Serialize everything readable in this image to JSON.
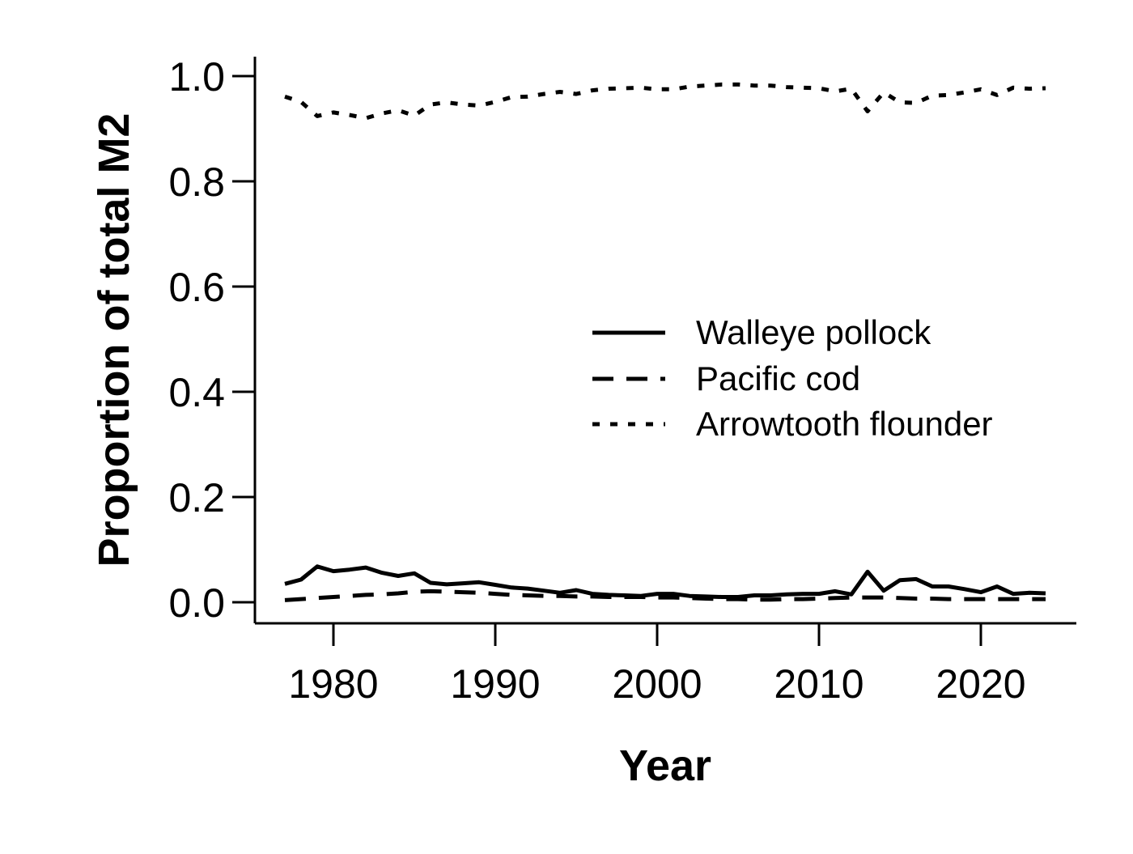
{
  "chart_data": {
    "type": "line",
    "title": "",
    "xlabel": "Year",
    "ylabel": "Proportion of total M2",
    "xlim": [
      1975.5,
      2026
    ],
    "ylim": [
      -0.04,
      1.04
    ],
    "xticks": [
      1980,
      1990,
      2000,
      2010,
      2020
    ],
    "xtick_labels": [
      "1980",
      "1990",
      "2000",
      "2010",
      "2020"
    ],
    "yticks": [
      0.0,
      0.2,
      0.4,
      0.6,
      0.8,
      1.0
    ],
    "ytick_labels": [
      "0.0",
      "0.2",
      "0.4",
      "0.6",
      "0.8",
      "1.0"
    ],
    "grid": false,
    "legend_position": "center-right",
    "x": [
      1977,
      1978,
      1979,
      1980,
      1981,
      1982,
      1983,
      1984,
      1985,
      1986,
      1987,
      1988,
      1989,
      1990,
      1991,
      1992,
      1993,
      1994,
      1995,
      1996,
      1997,
      1998,
      1999,
      2000,
      2001,
      2002,
      2003,
      2004,
      2005,
      2006,
      2007,
      2008,
      2009,
      2010,
      2011,
      2012,
      2013,
      2014,
      2015,
      2016,
      2017,
      2018,
      2019,
      2020,
      2021,
      2022,
      2023,
      2024
    ],
    "series": [
      {
        "name": "Walleye pollock",
        "style": "solid",
        "color": "#000000",
        "values": [
          0.035,
          0.043,
          0.068,
          0.059,
          0.062,
          0.066,
          0.056,
          0.05,
          0.055,
          0.037,
          0.034,
          0.036,
          0.038,
          0.033,
          0.028,
          0.026,
          0.022,
          0.018,
          0.023,
          0.016,
          0.014,
          0.013,
          0.012,
          0.016,
          0.016,
          0.012,
          0.011,
          0.01,
          0.01,
          0.013,
          0.013,
          0.015,
          0.016,
          0.016,
          0.021,
          0.015,
          0.058,
          0.022,
          0.042,
          0.044,
          0.03,
          0.03,
          0.025,
          0.019,
          0.03,
          0.016,
          0.018,
          0.017
        ]
      },
      {
        "name": "Pacific cod",
        "style": "dashed",
        "color": "#000000",
        "values": [
          0.004,
          0.006,
          0.008,
          0.01,
          0.012,
          0.014,
          0.015,
          0.017,
          0.02,
          0.021,
          0.02,
          0.019,
          0.018,
          0.016,
          0.014,
          0.013,
          0.012,
          0.012,
          0.011,
          0.011,
          0.01,
          0.01,
          0.01,
          0.009,
          0.009,
          0.008,
          0.007,
          0.006,
          0.006,
          0.005,
          0.005,
          0.006,
          0.006,
          0.007,
          0.008,
          0.009,
          0.009,
          0.009,
          0.008,
          0.007,
          0.007,
          0.006,
          0.006,
          0.006,
          0.006,
          0.006,
          0.006,
          0.006
        ]
      },
      {
        "name": "Arrowtooth flounder",
        "style": "dotted",
        "color": "#000000",
        "values": [
          0.961,
          0.951,
          0.924,
          0.931,
          0.926,
          0.92,
          0.929,
          0.935,
          0.925,
          0.946,
          0.95,
          0.946,
          0.944,
          0.951,
          0.96,
          0.961,
          0.966,
          0.97,
          0.966,
          0.973,
          0.976,
          0.977,
          0.978,
          0.975,
          0.975,
          0.98,
          0.982,
          0.984,
          0.984,
          0.982,
          0.982,
          0.979,
          0.978,
          0.977,
          0.971,
          0.976,
          0.933,
          0.969,
          0.95,
          0.949,
          0.963,
          0.964,
          0.969,
          0.975,
          0.964,
          0.978,
          0.976,
          0.977
        ]
      }
    ]
  }
}
